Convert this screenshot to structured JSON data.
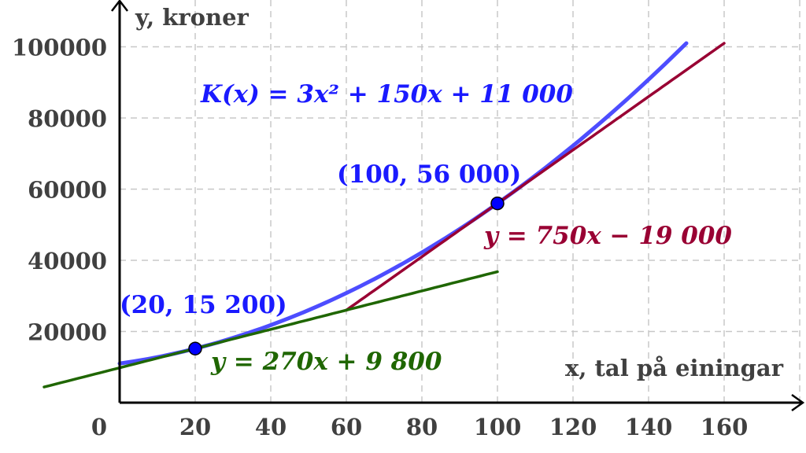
{
  "chart_data": {
    "type": "line",
    "title": "",
    "xlabel": "x, tal på einingar",
    "ylabel": "y, kroner",
    "xlim": [
      -20,
      180
    ],
    "ylim": [
      0,
      110000
    ],
    "grid": true,
    "x_ticks": [
      0,
      20,
      40,
      60,
      80,
      100,
      120,
      140,
      160
    ],
    "y_ticks": [
      20000,
      40000,
      60000,
      80000,
      100000
    ],
    "series": [
      {
        "name": "K(x) = 3x² + 150x + 11 000",
        "kind": "function",
        "a": 3,
        "b": 150,
        "c": 11000,
        "domain": [
          0,
          150
        ],
        "color": "#4d4dff"
      },
      {
        "name": "y = 750x − 19 000",
        "kind": "line",
        "slope": 750,
        "intercept": -19000,
        "domain": [
          60,
          160
        ],
        "color": "#990033"
      },
      {
        "name": "y = 270x + 9 800",
        "kind": "line",
        "slope": 270,
        "intercept": 9800,
        "domain": [
          -20,
          100
        ],
        "color": "#1f6600"
      }
    ],
    "points": [
      {
        "x": 20,
        "y": 15200,
        "label": "(20, 15 200)",
        "color": "#0000ff"
      },
      {
        "x": 100,
        "y": 56000,
        "label": "(100, 56 000)",
        "color": "#0000ff"
      }
    ],
    "label_colors": {
      "text": "#404040",
      "points": "#1a1aff"
    }
  }
}
